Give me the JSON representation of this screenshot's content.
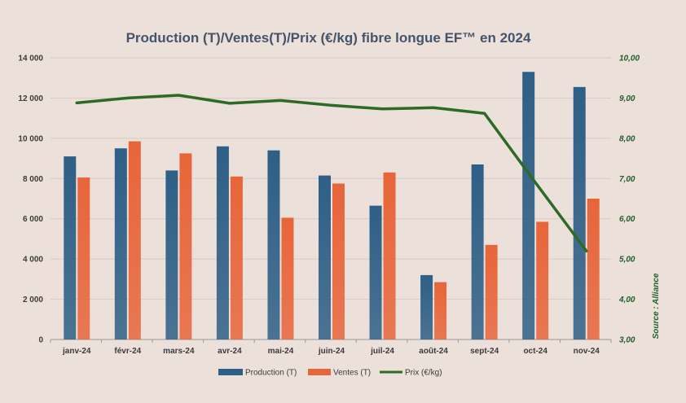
{
  "chart_data": {
    "type": "bar",
    "title": "Production (T)/Ventes(T)/Prix (€/kg) fibre longue EF™  en 2024",
    "categories": [
      "janv-24",
      "févr-24",
      "mars-24",
      "avr-24",
      "mai-24",
      "juin-24",
      "juil-24",
      "août-24",
      "sept-24",
      "oct-24",
      "nov-24"
    ],
    "series": [
      {
        "name": "Production (T)",
        "kind": "bar",
        "axis": "left",
        "color": "#2e5f86",
        "values": [
          9100,
          9500,
          8400,
          9600,
          9400,
          8150,
          6650,
          3200,
          8700,
          13300,
          12550
        ]
      },
      {
        "name": "Ventes (T)",
        "kind": "bar",
        "axis": "left",
        "color": "#e8653a",
        "values": [
          8050,
          9850,
          9250,
          8100,
          6050,
          7750,
          8300,
          2850,
          4700,
          5850,
          7000
        ]
      },
      {
        "name": "Prix (€/kg)",
        "kind": "line",
        "axis": "right",
        "color": "#2d6a25",
        "values": [
          8.88,
          9.0,
          9.07,
          8.87,
          8.94,
          8.82,
          8.73,
          8.76,
          8.62,
          6.9,
          5.2
        ]
      }
    ],
    "ylim_left": [
      0,
      14000
    ],
    "yticks_left": [
      "0",
      "2 000",
      "4 000",
      "6 000",
      "8 000",
      "10 000",
      "12 000",
      "14 000"
    ],
    "ylim_right": [
      3,
      10
    ],
    "yticks_right": [
      "3,00",
      "4,00",
      "5,00",
      "6,00",
      "7,00",
      "8,00",
      "9,00",
      "10,00"
    ],
    "grid": true,
    "legend_position": "bottom",
    "annotation": "Source : Alliance"
  }
}
